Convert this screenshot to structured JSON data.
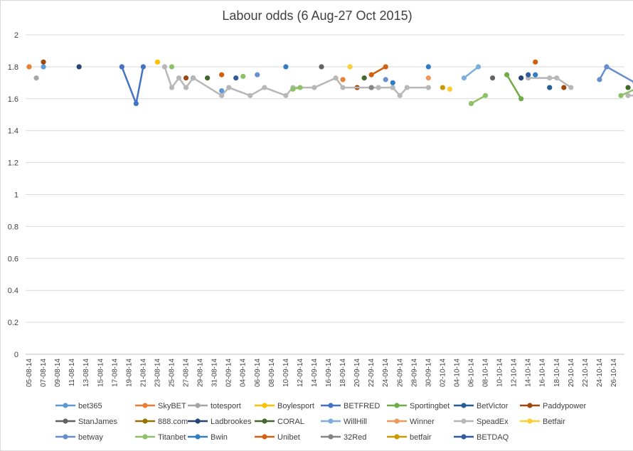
{
  "chart_data": {
    "type": "line",
    "title": "Labour odds (6 Aug-27 Oct 2015)",
    "xlabel": "",
    "ylabel": "",
    "ylim": [
      0,
      2
    ],
    "yticks": [
      0,
      0.2,
      0.4,
      0.6,
      0.8,
      1,
      1.2,
      1.4,
      1.6,
      1.8,
      2
    ],
    "x_tick_labels": [
      "05-08-14",
      "07-08-14",
      "09-08-14",
      "11-08-14",
      "13-08-14",
      "15-08-14",
      "17-08-14",
      "19-08-14",
      "21-08-14",
      "23-08-14",
      "25-08-14",
      "27-08-14",
      "29-08-14",
      "31-08-14",
      "02-09-14",
      "04-09-14",
      "06-09-14",
      "08-09-14",
      "10-09-14",
      "12-09-14",
      "14-09-14",
      "16-09-14",
      "18-09-14",
      "20-09-14",
      "22-09-14",
      "24-09-14",
      "26-09-14",
      "28-09-14",
      "30-09-14",
      "02-10-14",
      "04-10-14",
      "06-10-14",
      "08-10-14",
      "10-10-14",
      "12-10-14",
      "14-10-14",
      "16-10-14",
      "18-10-14",
      "20-10-14",
      "22-10-14",
      "24-10-14",
      "26-10-14"
    ],
    "grid": "horizontal",
    "legend_position": "bottom",
    "series": [
      {
        "name": "bet365",
        "color": "#5b9bd5",
        "points": [
          [
            2,
            1.8
          ],
          [
            27,
            1.65
          ]
        ]
      },
      {
        "name": "SkyBET",
        "color": "#ed7d31",
        "points": [
          [
            0,
            1.8
          ],
          [
            44,
            1.72
          ]
        ]
      },
      {
        "name": "totesport",
        "color": "#a5a5a5",
        "points": [
          [
            1,
            1.73
          ]
        ]
      },
      {
        "name": "Boylesport",
        "color": "#ffc000",
        "points": [
          [
            18,
            1.83
          ]
        ]
      },
      {
        "name": "BETFRED",
        "color": "#4472c4",
        "points": [
          [
            13,
            1.8
          ],
          [
            15,
            1.57
          ],
          [
            16,
            1.8
          ]
        ]
      },
      {
        "name": "Sportingbet",
        "color": "#70ad47",
        "points": [
          [
            67,
            1.75
          ],
          [
            69,
            1.6
          ]
        ]
      },
      {
        "name": "BetVictor",
        "color": "#255e91",
        "points": [
          [
            73,
            1.67
          ]
        ]
      },
      {
        "name": "Paddypower",
        "color": "#9e480e",
        "points": [
          [
            2,
            1.83
          ],
          [
            22,
            1.73
          ],
          [
            46,
            1.67
          ],
          [
            75,
            1.67
          ]
        ]
      },
      {
        "name": "StanJames",
        "color": "#636363",
        "points": [
          [
            41,
            1.8
          ],
          [
            65,
            1.73
          ]
        ]
      },
      {
        "name": "888.com",
        "color": "#997300",
        "points": []
      },
      {
        "name": "Ladbrookes",
        "color": "#264478",
        "points": [
          [
            7,
            1.8
          ],
          [
            23,
            1.73
          ],
          [
            69,
            1.73
          ]
        ]
      },
      {
        "name": "CORAL",
        "color": "#43682b",
        "points": [
          [
            25,
            1.73
          ],
          [
            47,
            1.73
          ],
          [
            84,
            1.67
          ]
        ]
      },
      {
        "name": "WillHill",
        "color": "#7cafdd",
        "points": [
          [
            61,
            1.73
          ],
          [
            63,
            1.8
          ]
        ]
      },
      {
        "name": "Winner",
        "color": "#f1975a",
        "points": [
          [
            56,
            1.73
          ]
        ]
      },
      {
        "name": "SpeadEx",
        "color": "#b7b7b7",
        "points": [
          [
            19,
            1.8
          ],
          [
            20,
            1.67
          ],
          [
            21,
            1.73
          ],
          [
            22,
            1.67
          ],
          [
            23,
            1.73
          ],
          [
            27,
            1.62
          ],
          [
            28,
            1.67
          ],
          [
            31,
            1.62
          ],
          [
            33,
            1.67
          ],
          [
            36,
            1.62
          ],
          [
            37,
            1.67
          ],
          [
            40,
            1.67
          ],
          [
            43,
            1.73
          ],
          [
            44,
            1.67
          ],
          [
            48,
            1.67
          ],
          [
            49,
            1.67
          ],
          [
            51,
            1.67
          ],
          [
            52,
            1.62
          ],
          [
            53,
            1.67
          ],
          [
            56,
            1.67
          ],
          [
            70,
            1.73
          ],
          [
            73,
            1.73
          ],
          [
            74,
            1.73
          ],
          [
            76,
            1.67
          ],
          [
            84,
            1.62
          ],
          [
            87,
            1.62
          ]
        ]
      },
      {
        "name": "Betfair",
        "color": "#ffcd33",
        "points": [
          [
            45,
            1.8
          ],
          [
            59,
            1.66
          ]
        ]
      },
      {
        "name": "betway",
        "color": "#698ed0",
        "points": [
          [
            32,
            1.75
          ],
          [
            50,
            1.72
          ],
          [
            80,
            1.72
          ],
          [
            81,
            1.8
          ],
          [
            85,
            1.7
          ],
          [
            86,
            1.65
          ]
        ]
      },
      {
        "name": "Titanbet",
        "color": "#8cc168",
        "points": [
          [
            20,
            1.8
          ],
          [
            30,
            1.74
          ],
          [
            37,
            1.66
          ],
          [
            38,
            1.67
          ],
          [
            62,
            1.57
          ],
          [
            64,
            1.62
          ],
          [
            83,
            1.62
          ],
          [
            87,
            1.7
          ]
        ]
      },
      {
        "name": "Bwin",
        "color": "#327dc2",
        "points": [
          [
            36,
            1.8
          ],
          [
            51,
            1.7
          ],
          [
            56,
            1.8
          ],
          [
            71,
            1.75
          ],
          [
            87,
            1.68
          ]
        ]
      },
      {
        "name": "Unibet",
        "color": "#d26012",
        "points": [
          [
            27,
            1.75
          ],
          [
            48,
            1.75
          ],
          [
            50,
            1.8
          ],
          [
            71,
            1.83
          ],
          [
            87,
            1.75
          ]
        ]
      },
      {
        "name": "32Red",
        "color": "#848484",
        "points": [
          [
            48,
            1.67
          ]
        ]
      },
      {
        "name": "betfair",
        "color": "#cc9a00",
        "points": [
          [
            58,
            1.67
          ]
        ]
      },
      {
        "name": "BETDAQ",
        "color": "#335aa1",
        "points": [
          [
            29,
            1.73
          ],
          [
            70,
            1.75
          ],
          [
            86,
            1.73
          ],
          [
            87,
            1.73
          ]
        ]
      }
    ]
  }
}
